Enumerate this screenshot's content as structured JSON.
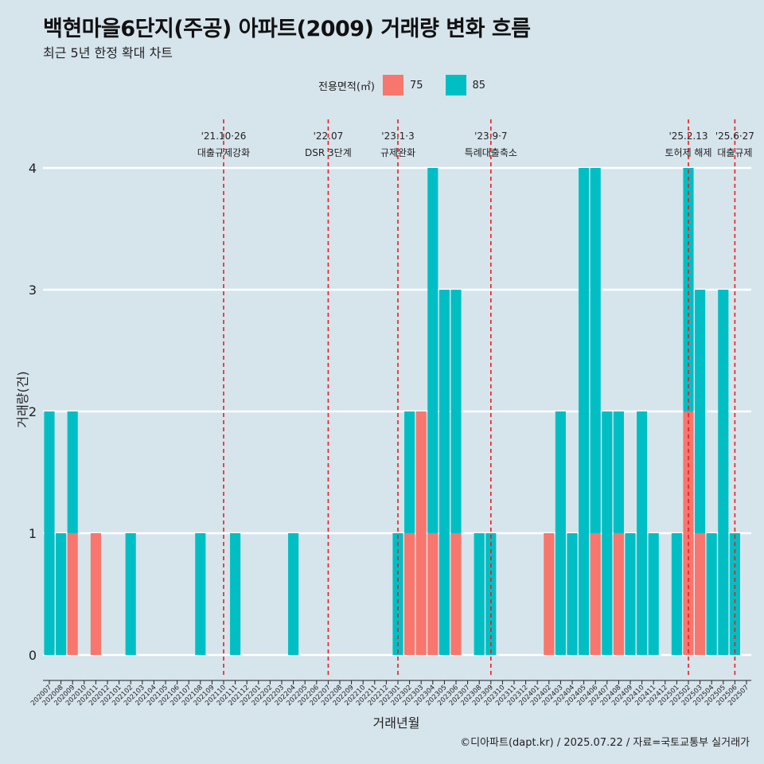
{
  "header": {
    "title": "백현마을6단지(주공) 아파트(2009) 거래량 변화 흐름",
    "subtitle": "최근 5년 한정 확대 차트"
  },
  "legend": {
    "title": "전용면적(㎡)",
    "items": [
      {
        "label": "75",
        "color": "#f8766d"
      },
      {
        "label": "85",
        "color": "#00bfc4"
      }
    ]
  },
  "caption": "©디아파트(dapt.kr) / 2025.07.22 / 자료=국토교통부 실거래가",
  "chart_data": {
    "type": "bar",
    "xlabel": "거래년월",
    "ylabel": "거래량(건)",
    "ylim": [
      0,
      4
    ],
    "yticks": [
      0,
      1,
      2,
      3,
      4
    ],
    "grid": "horizontal",
    "x_categories": [
      "202007",
      "202008",
      "202009",
      "202010",
      "202011",
      "202012",
      "202101",
      "202102",
      "202103",
      "202104",
      "202105",
      "202106",
      "202107",
      "202108",
      "202109",
      "202110",
      "202111",
      "202112",
      "202201",
      "202202",
      "202203",
      "202204",
      "202205",
      "202206",
      "202207",
      "202208",
      "202209",
      "202210",
      "202211",
      "202212",
      "202301",
      "202302",
      "202303",
      "202304",
      "202305",
      "202306",
      "202307",
      "202308",
      "202309",
      "202310",
      "202311",
      "202312",
      "202401",
      "202402",
      "202403",
      "202404",
      "202405",
      "202406",
      "202407",
      "202408",
      "202409",
      "202410",
      "202411",
      "202412",
      "202501",
      "202502",
      "202503",
      "202504",
      "202505",
      "202506",
      "202507"
    ],
    "series": [
      {
        "name": "75",
        "color": "#f8766d",
        "points": [
          {
            "x": "202009",
            "y": 1
          },
          {
            "x": "202011",
            "y": 1
          },
          {
            "x": "202302",
            "y": 1
          },
          {
            "x": "202303",
            "y": 2
          },
          {
            "x": "202304",
            "y": 1
          },
          {
            "x": "202306",
            "y": 1
          },
          {
            "x": "202402",
            "y": 1
          },
          {
            "x": "202406",
            "y": 1
          },
          {
            "x": "202408",
            "y": 1
          },
          {
            "x": "202502",
            "y": 2
          },
          {
            "x": "202503",
            "y": 1
          }
        ]
      },
      {
        "name": "85",
        "color": "#00bfc4",
        "points": [
          {
            "x": "202007",
            "y": 2
          },
          {
            "x": "202008",
            "y": 1
          },
          {
            "x": "202009",
            "y": 1
          },
          {
            "x": "202102",
            "y": 1
          },
          {
            "x": "202108",
            "y": 1
          },
          {
            "x": "202111",
            "y": 1
          },
          {
            "x": "202204",
            "y": 1
          },
          {
            "x": "202301",
            "y": 1
          },
          {
            "x": "202302",
            "y": 1
          },
          {
            "x": "202304",
            "y": 3
          },
          {
            "x": "202305",
            "y": 3
          },
          {
            "x": "202306",
            "y": 2
          },
          {
            "x": "202308",
            "y": 1
          },
          {
            "x": "202309",
            "y": 1
          },
          {
            "x": "202403",
            "y": 2
          },
          {
            "x": "202404",
            "y": 1
          },
          {
            "x": "202405",
            "y": 4
          },
          {
            "x": "202406",
            "y": 3
          },
          {
            "x": "202407",
            "y": 2
          },
          {
            "x": "202408",
            "y": 1
          },
          {
            "x": "202409",
            "y": 1
          },
          {
            "x": "202410",
            "y": 2
          },
          {
            "x": "202411",
            "y": 1
          },
          {
            "x": "202501",
            "y": 1
          },
          {
            "x": "202502",
            "y": 2
          },
          {
            "x": "202503",
            "y": 2
          },
          {
            "x": "202504",
            "y": 1
          },
          {
            "x": "202505",
            "y": 3
          },
          {
            "x": "202506",
            "y": 1
          }
        ]
      }
    ],
    "events": [
      {
        "x": "202110",
        "date": "'21.10·26",
        "label": "대출규제강화"
      },
      {
        "x": "202207",
        "date": "'22.07",
        "label": "DSR 3단계"
      },
      {
        "x": "202301",
        "date": "'23.1·3",
        "label": "규제완화"
      },
      {
        "x": "202309",
        "date": "'23.9·7",
        "label": "특례대출축소"
      },
      {
        "x": "202502",
        "date": "'25.2.13",
        "label": "토허제 해제"
      },
      {
        "x": "202506",
        "date": "'25.6·27",
        "label": "대출규제"
      }
    ]
  }
}
